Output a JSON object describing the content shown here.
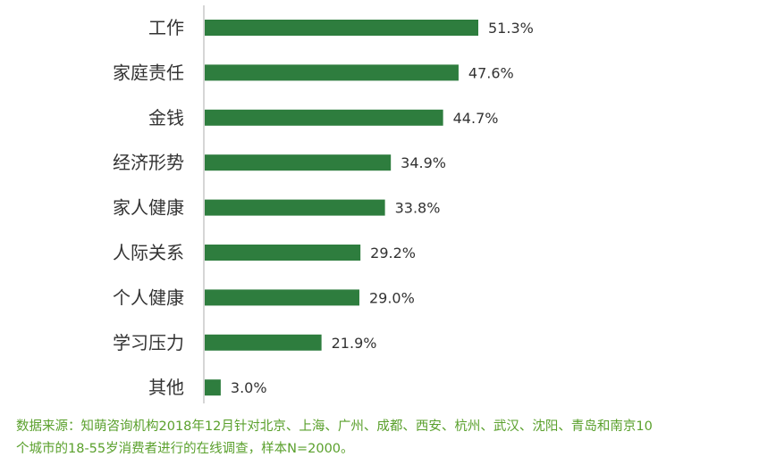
{
  "chart_data": {
    "type": "bar",
    "orientation": "horizontal",
    "categories": [
      "工作",
      "家庭责任",
      "金钱",
      "经济形势",
      "家人健康",
      "人际关系",
      "个人健康",
      "学习压力",
      "其他"
    ],
    "values": [
      51.3,
      47.6,
      44.7,
      34.9,
      33.8,
      29.2,
      29.0,
      21.9,
      3.0
    ],
    "value_labels": [
      "51.3%",
      "47.6%",
      "44.7%",
      "34.9%",
      "33.8%",
      "29.2%",
      "29.0%",
      "21.9%",
      "3.0%"
    ],
    "unit": "%",
    "grid": false,
    "legend": "none",
    "colors": {
      "bar": "#2e7d3e",
      "axis": "#c8c8c8",
      "note": "#5aa02c"
    }
  },
  "footnote": {
    "line1": "数据来源：知萌咨询机构2018年12月针对北京、上海、广州、成都、西安、杭州、武汉、沈阳、青岛和南京10",
    "line2": "个城市的18-55岁消费者进行的在线调查，样本N=2000。"
  }
}
